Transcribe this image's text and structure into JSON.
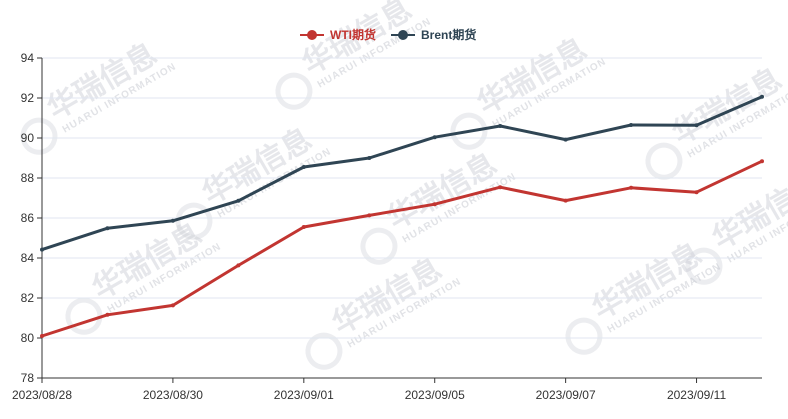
{
  "watermark": {
    "brand": "华瑞信息",
    "subtitle": "HUARUI INFORMATION"
  },
  "chart_data": {
    "type": "line",
    "x": [
      "2023/08/28",
      "2023/08/29",
      "2023/08/30",
      "2023/08/31",
      "2023/09/01",
      "2023/09/04",
      "2023/09/05",
      "2023/09/06",
      "2023/09/07",
      "2023/09/08",
      "2023/09/11",
      "2023/09/12"
    ],
    "x_tick_labels": [
      "2023/08/28",
      "2023/08/30",
      "2023/09/01",
      "2023/09/05",
      "2023/09/07",
      "2023/09/11"
    ],
    "series": [
      {
        "name": "WTI期货",
        "color": "#c23531",
        "values": [
          80.1,
          81.16,
          81.63,
          83.63,
          85.55,
          86.13,
          86.69,
          87.54,
          86.87,
          87.51,
          87.29,
          88.84
        ]
      },
      {
        "name": "Brent期货",
        "color": "#2f4554",
        "values": [
          84.42,
          85.49,
          85.86,
          86.86,
          88.55,
          89.0,
          90.04,
          90.6,
          89.92,
          90.65,
          90.64,
          92.06
        ]
      }
    ],
    "title": "",
    "xlabel": "",
    "ylabel": "",
    "ylim": [
      78,
      94
    ],
    "y_ticks": [
      78,
      80,
      82,
      84,
      86,
      88,
      90,
      92,
      94
    ],
    "grid": "horizontal",
    "legend_position": "top-center"
  }
}
